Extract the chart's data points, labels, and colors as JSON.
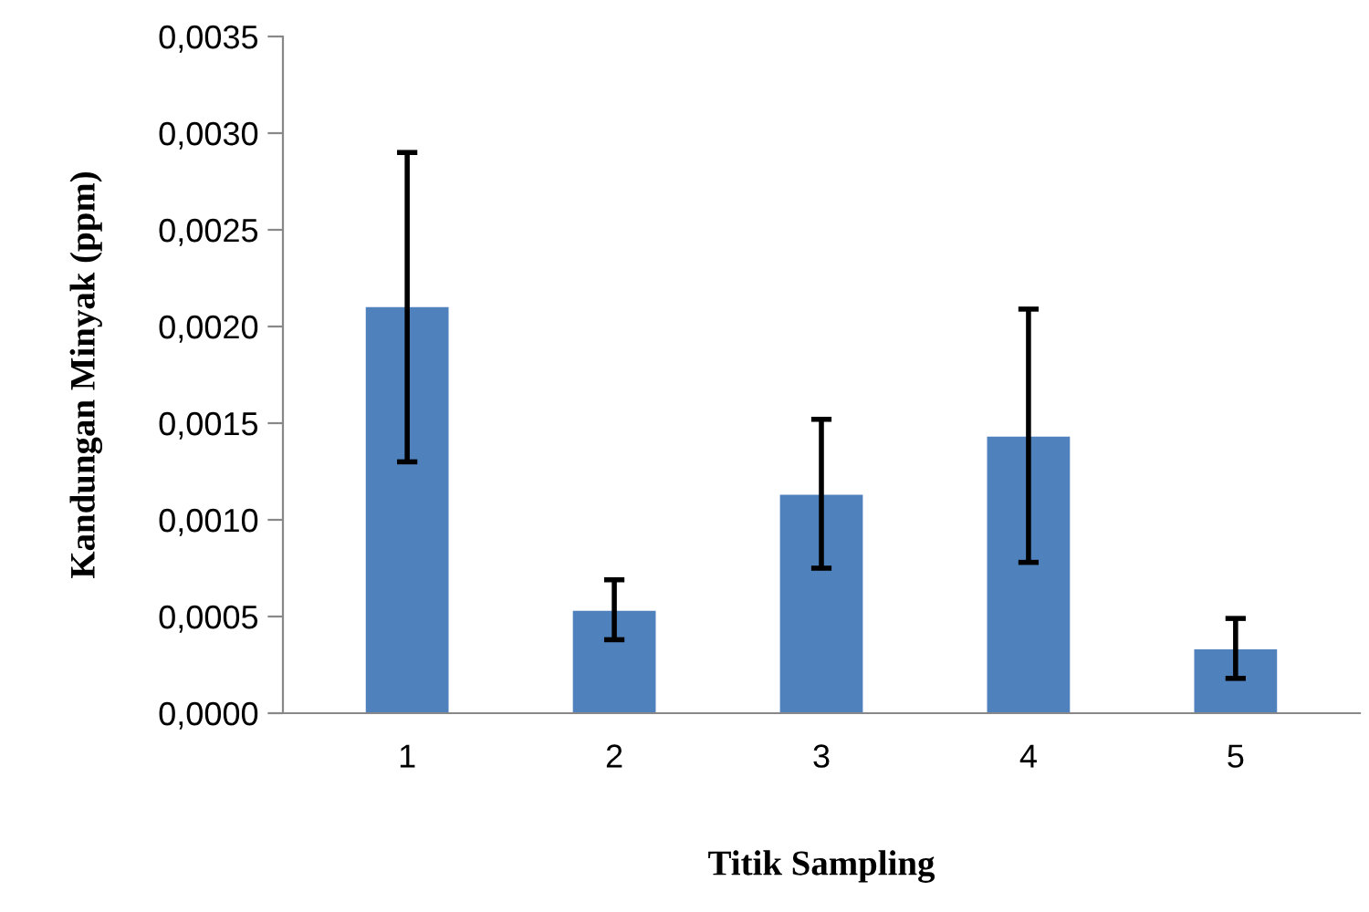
{
  "chart_data": {
    "type": "bar",
    "xlabel": "Titik Sampling",
    "ylabel": "Kandungan Minyak (ppm)",
    "categories": [
      "1",
      "2",
      "3",
      "4",
      "5"
    ],
    "values": [
      0.0021,
      0.00053,
      0.00113,
      0.00143,
      0.00033
    ],
    "errors": [
      [
        0.0013,
        0.0029
      ],
      [
        0.00038,
        0.00069
      ],
      [
        0.00075,
        0.00152
      ],
      [
        0.00078,
        0.00209
      ],
      [
        0.00018,
        0.00049
      ]
    ],
    "color": "#4f81bd",
    "ylim": [
      0,
      0.0035
    ],
    "yticks": [
      {
        "value": 0,
        "label": "0,0000"
      },
      {
        "value": 0.0005,
        "label": "0,0005"
      },
      {
        "value": 0.001,
        "label": "0,0010"
      },
      {
        "value": 0.0015,
        "label": "0,0015"
      },
      {
        "value": 0.002,
        "label": "0,0020"
      },
      {
        "value": 0.0025,
        "label": "0,0025"
      },
      {
        "value": 0.003,
        "label": "0,0030"
      },
      {
        "value": 0.0035,
        "label": "0,0035"
      }
    ],
    "grid": false
  }
}
